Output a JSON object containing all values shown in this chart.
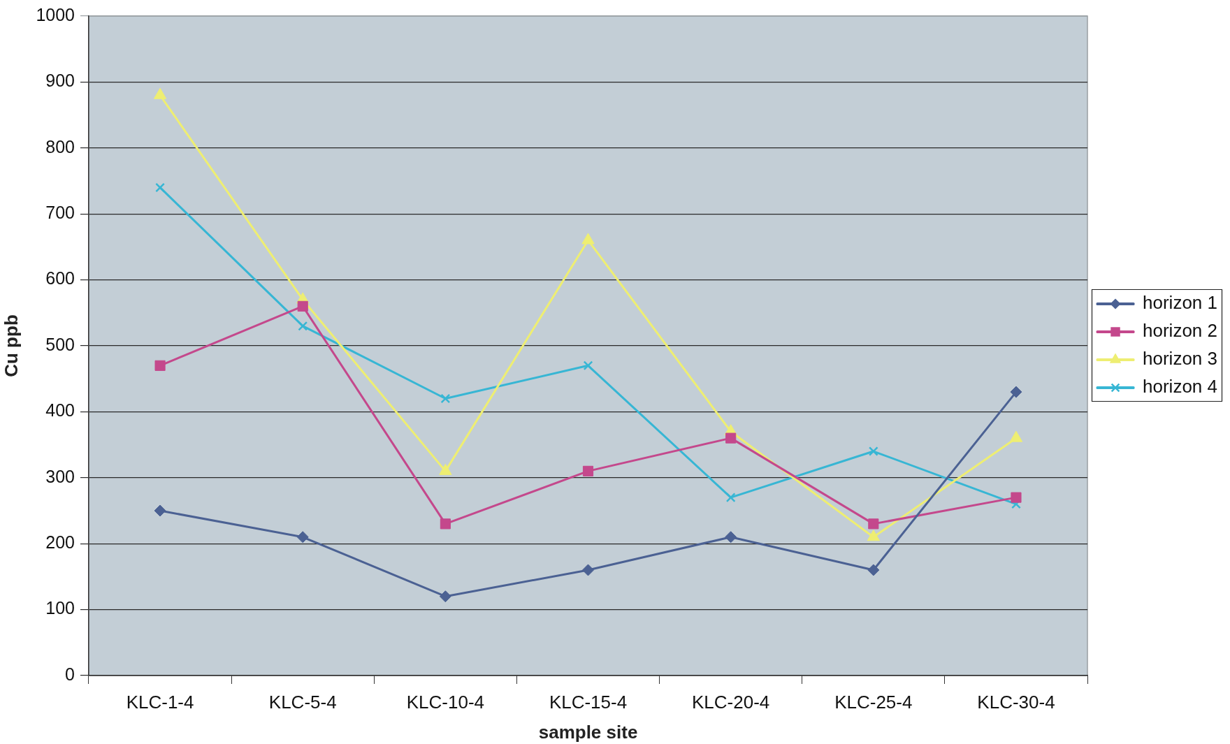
{
  "chart_data": {
    "type": "line",
    "xlabel": "sample site",
    "ylabel": "Cu ppb",
    "categories": [
      "KLC-1-4",
      "KLC-5-4",
      "KLC-10-4",
      "KLC-15-4",
      "KLC-20-4",
      "KLC-25-4",
      "KLC-30-4"
    ],
    "series": [
      {
        "name": "horizon 1",
        "color": "#4b6193",
        "marker": "diamond",
        "values": [
          250,
          210,
          120,
          160,
          210,
          160,
          430
        ]
      },
      {
        "name": "horizon 2",
        "color": "#c4488c",
        "marker": "square",
        "values": [
          470,
          560,
          230,
          310,
          360,
          230,
          270
        ]
      },
      {
        "name": "horizon 3",
        "color": "#eeee72",
        "marker": "triangle",
        "values": [
          880,
          570,
          310,
          660,
          370,
          210,
          360
        ]
      },
      {
        "name": "horizon 4",
        "color": "#37b6d4",
        "marker": "cross",
        "values": [
          740,
          530,
          420,
          470,
          270,
          340,
          260
        ]
      }
    ],
    "ylim": [
      0,
      1000
    ],
    "yticks": [
      0,
      100,
      200,
      300,
      400,
      500,
      600,
      700,
      800,
      900,
      1000
    ],
    "grid": "y",
    "legend": "right",
    "line_style": "solid"
  }
}
